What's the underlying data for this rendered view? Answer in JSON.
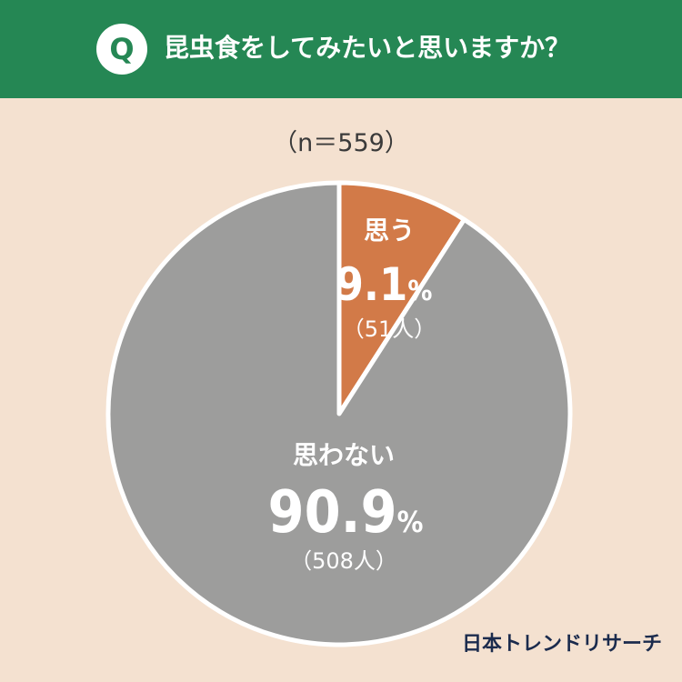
{
  "header": {
    "badge": "Q",
    "question": "昆虫食をしてみたいと思いますか？",
    "bg_color": "#258754"
  },
  "sample_size": "（n＝559）",
  "brand": "日本トレンドリサーチ",
  "chart_data": {
    "type": "pie",
    "title": "",
    "start_angle_deg": 0,
    "direction": "clockwise",
    "slices": [
      {
        "label": "思う",
        "percent_label": "9.1",
        "pct_unit": "%",
        "count_label": "（51人）",
        "value": 9.1,
        "count": 51,
        "color": "#d27a48"
      },
      {
        "label": "思わない",
        "percent_label": "90.9",
        "pct_unit": "%",
        "count_label": "（508人）",
        "value": 90.9,
        "count": 508,
        "color": "#9d9d9c"
      }
    ]
  }
}
